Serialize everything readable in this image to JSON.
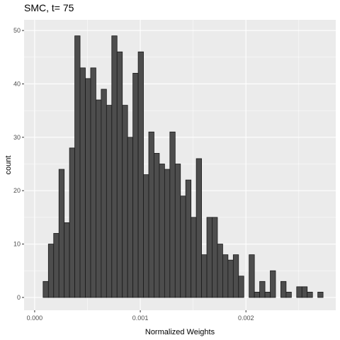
{
  "chart_data": {
    "type": "bar",
    "title": "SMC, t= 75",
    "xlabel": "Normalized Weights",
    "ylabel": "count",
    "xlim": [
      -0.0001,
      0.00285
    ],
    "ylim": [
      -2.4,
      52
    ],
    "x_ticks": [
      0.0,
      0.001,
      0.002
    ],
    "x_tick_labels": [
      "0.000",
      "0.001",
      "0.002"
    ],
    "y_ticks": [
      0,
      10,
      20,
      30,
      40,
      50
    ],
    "y_tick_labels": [
      "0",
      "10",
      "20",
      "30",
      "40",
      "50"
    ],
    "grid": true,
    "bin_width": 5e-05,
    "bin_start": 8e-05,
    "values": [
      3,
      10,
      12,
      24,
      14,
      28,
      49,
      43,
      41,
      43,
      37,
      39,
      36,
      49,
      46,
      36,
      30,
      42,
      46,
      23,
      31,
      27,
      25,
      24,
      31,
      25,
      19,
      22,
      15,
      26,
      8,
      15,
      15,
      10,
      8,
      7,
      8,
      4,
      0,
      8,
      1,
      3,
      1,
      5,
      0,
      3,
      1,
      0,
      2,
      2,
      1,
      0,
      1
    ],
    "colors": {
      "panel_background": "#ebebeb",
      "grid_major": "#ffffff",
      "bar_fill": "#4d4d4d",
      "bar_stroke": "#1a1a1a",
      "tick_label": "#4d4d4d"
    }
  }
}
